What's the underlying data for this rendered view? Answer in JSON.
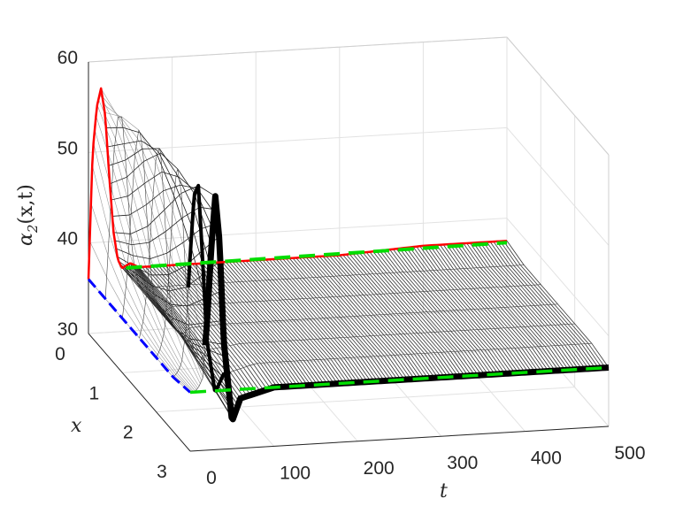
{
  "chart_data": {
    "type": "surface",
    "title": "",
    "xlabel": "t",
    "ylabel": "x",
    "zlabel": "α2(x,t)",
    "zlabel_parts": {
      "main": "α",
      "sub": "2",
      "rest": "(x,t)"
    },
    "t_lim": [
      0,
      500
    ],
    "x_lim": [
      0,
      3
    ],
    "z_lim": [
      30,
      60
    ],
    "t_ticks": [
      "0",
      "100",
      "200",
      "300",
      "400",
      "500"
    ],
    "x_ticks": [
      "0",
      "1",
      "2",
      "3"
    ],
    "z_ticks": [
      "30",
      "40",
      "50",
      "60"
    ],
    "grid": true,
    "t": [
      0,
      5,
      10,
      15,
      20,
      25,
      30,
      35,
      40,
      50,
      60,
      100,
      200,
      300,
      400,
      500
    ],
    "x": [
      0,
      0.5,
      1,
      1.5,
      2,
      2.5,
      3
    ],
    "z": [
      [
        36,
        50,
        55,
        57,
        54,
        47,
        41,
        38,
        37,
        37.5,
        37,
        37,
        37,
        37,
        37.5,
        37.5
      ],
      [
        36,
        44,
        52,
        56,
        56,
        50,
        43,
        39,
        37,
        37,
        37,
        37,
        37,
        37,
        37,
        37
      ],
      [
        36,
        40,
        47,
        54,
        57,
        54,
        46,
        40,
        37,
        36.5,
        37,
        37,
        37,
        37,
        37,
        37
      ],
      [
        36,
        38,
        42,
        50,
        56,
        57,
        50,
        42,
        37,
        36,
        36.8,
        37,
        37,
        37,
        37,
        37
      ],
      [
        36,
        37,
        39,
        45,
        53,
        57,
        54,
        45,
        38,
        35,
        36.5,
        37,
        37,
        37,
        37,
        37
      ],
      [
        36,
        36.5,
        37.5,
        41,
        49,
        56,
        57,
        49,
        40,
        34,
        36,
        37,
        37,
        37,
        37,
        37
      ],
      [
        36.5,
        36.5,
        37,
        38,
        44,
        52,
        58,
        53,
        42,
        33,
        35.5,
        36.5,
        36.5,
        36.5,
        36.5,
        36.5
      ]
    ],
    "boundary_colors": {
      "x0_curve": "#ff0000",
      "initial": "#0000ff",
      "reference": "#00dd00",
      "surface": "#000000"
    }
  }
}
